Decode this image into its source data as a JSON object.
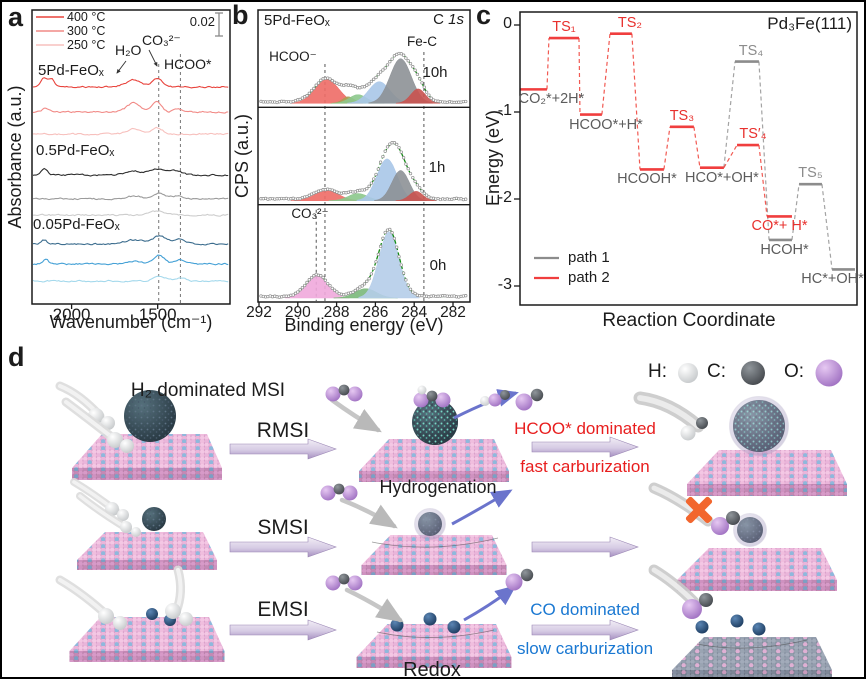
{
  "panel_a": {
    "tag": "a",
    "ylabel": "Absorbance (a.u.)",
    "xlabel": "Wavenumber (cm⁻¹)",
    "legend": [
      {
        "label": "400 °C",
        "color": "#e8433c"
      },
      {
        "label": "300 °C",
        "color": "#f18a86"
      },
      {
        "label": "250 °C",
        "color": "#f7c0bd"
      }
    ],
    "scalebar_label": "0.02",
    "annotations": {
      "h2o": "H₂O",
      "co3": "CO₃²⁻",
      "hcoo": "HCOO*"
    },
    "group_labels": [
      "5Pd-FeOₓ",
      "0.5Pd-FeOₓ",
      "0.05Pd-FeOₓ"
    ]
  },
  "panel_b": {
    "tag": "b",
    "sample": "5Pd-FeOₓ",
    "corner_element": "C ",
    "corner_orbital": "1s",
    "label_hcoo": "HCOO⁻",
    "label_fec": "Fe-C",
    "label_co3": "CO₃²⁻",
    "times": [
      "10h",
      "1h",
      "0h"
    ],
    "ylabel": "CPS (a.u.)",
    "xlabel": "Binding energy (eV)"
  },
  "panel_c": {
    "tag": "c",
    "title": "Pd₃Fe(111)",
    "ylabel": "Energy (eV)",
    "xlabel": "Reaction Coordinate",
    "legend": [
      {
        "label": "path 1",
        "color": "#8c8c8c"
      },
      {
        "label": "path 2",
        "color": "#f03e3e"
      }
    ]
  },
  "panel_d": {
    "tag": "d",
    "title": "H₂ dominated MSI",
    "atom_legend": [
      {
        "symbol": "H:",
        "color": "#d0d3d5"
      },
      {
        "symbol": "C:",
        "color": "#55595d"
      },
      {
        "symbol": "O:",
        "color": "#bd93d4"
      }
    ],
    "row_labels": [
      "RMSI",
      "SMSI",
      "EMSI"
    ],
    "hydrogenation_label": "Hydrogenation",
    "redox_label": "Redox",
    "notes": {
      "hcoo_dominated": "HCOO* dominated",
      "fast_carburization": "fast carburization",
      "co_dominated": "CO dominated",
      "slow_carburization": "slow carburization"
    },
    "note_colors": {
      "red": "#e81e1e",
      "blue": "#1a78d2"
    }
  },
  "chart_data": [
    {
      "panel": "a",
      "type": "line",
      "xlabel": "Wavenumber (cm⁻¹)",
      "ylabel": "Absorbance (a.u.)",
      "x_range": [
        2230,
        1080
      ],
      "x_axis_reversed": true,
      "x_ticks": [
        2000,
        1500
      ],
      "scale_bar": 0.02,
      "dashed_lines_x": [
        1494,
        1368
      ],
      "annotations": [
        {
          "text": "H₂O",
          "x": 1640
        },
        {
          "text": "CO₃²⁻",
          "x": 1510
        },
        {
          "text": "HCOO*",
          "x": 1390
        }
      ],
      "groups": [
        {
          "label": "5Pd-FeOₓ",
          "series": [
            {
              "name": "400 °C",
              "color": "#e8433c",
              "offset": 85,
              "features": [
                [
                  2160,
                  9,
                  20
                ],
                [
                  2115,
                  8,
                  16
                ],
                [
                  1640,
                  7,
                  45
                ],
                [
                  1500,
                  9,
                  28
                ]
              ]
            },
            {
              "name": "300 °C",
              "color": "#f18a86",
              "offset": 110,
              "features": [
                [
                  2150,
                  4,
                  18
                ],
                [
                  1640,
                  9,
                  38
                ],
                [
                  1505,
                  11,
                  26
                ],
                [
                  1380,
                  3,
                  25
                ]
              ]
            },
            {
              "name": "250 °C",
              "color": "#f7c0bd",
              "offset": 132,
              "features": [
                [
                  1640,
                  5,
                  40
                ],
                [
                  1500,
                  6,
                  30
                ]
              ]
            }
          ]
        },
        {
          "label": "0.5Pd-FeOₓ",
          "series": [
            {
              "name": "400 °C",
              "color": "#2f2f2f",
              "offset": 173,
              "features": [
                [
                  2160,
                  6,
                  18
                ],
                [
                  1640,
                  4,
                  50
                ],
                [
                  1500,
                  6,
                  45
                ],
                [
                  1400,
                  4,
                  40
                ]
              ]
            },
            {
              "name": "300 °C",
              "color": "#9b9b9b",
              "offset": 197,
              "features": [
                [
                  1640,
                  3,
                  45
                ],
                [
                  1495,
                  6,
                  35
                ],
                [
                  1390,
                  3,
                  30
                ]
              ]
            },
            {
              "name": "250 °C",
              "color": "#cdcdcd",
              "offset": 213,
              "features": [
                [
                  1500,
                  4,
                  45
                ]
              ]
            }
          ]
        },
        {
          "label": "0.05Pd-FeOₓ",
          "series": [
            {
              "name": "400 °C",
              "color": "#3c6d8e",
              "offset": 242,
              "features": [
                [
                  2160,
                  4,
                  16
                ],
                [
                  1640,
                  4,
                  55
                ],
                [
                  1490,
                  8,
                  40
                ],
                [
                  1370,
                  5,
                  35
                ]
              ]
            },
            {
              "name": "300 °C",
              "color": "#45a1d6",
              "offset": 262,
              "features": [
                [
                  2150,
                  5,
                  14
                ],
                [
                  1640,
                  3,
                  45
                ],
                [
                  1490,
                  9,
                  30
                ],
                [
                  1370,
                  4,
                  30
                ]
              ]
            },
            {
              "name": "250 °C",
              "color": "#a5d9ec",
              "offset": 279,
              "features": [
                [
                  1490,
                  5,
                  35
                ],
                [
                  1370,
                  3,
                  30
                ]
              ]
            }
          ]
        }
      ]
    },
    {
      "panel": "b",
      "type": "area",
      "sample": "5Pd-FeOₓ",
      "region": "C 1s",
      "xlabel": "Binding energy (eV)",
      "ylabel": "CPS (a.u.)",
      "x_range": [
        292,
        281.1
      ],
      "x_axis_reversed": true,
      "x_ticks": [
        292,
        290,
        288,
        286,
        284,
        282
      ],
      "dashed_lines_ev": [
        288.6,
        283.5
      ],
      "extra_dashed_0h": 289.05,
      "envelope_color": "#128a12",
      "marker_color": "#8f8f8f",
      "subpanels": [
        {
          "time": "10h",
          "peaks": [
            [
              288.5,
              0.62,
              0.33,
              "#ee6c66"
            ],
            [
              287.4,
              0.3,
              0.09,
              "#ac9e52"
            ],
            [
              286.9,
              0.45,
              0.12,
              "#8cc88c"
            ],
            [
              285.8,
              0.55,
              0.3,
              "#a9c6e8"
            ],
            [
              284.7,
              0.55,
              0.62,
              "#8d9196"
            ],
            [
              283.8,
              0.38,
              0.2,
              "#c9534f"
            ]
          ]
        },
        {
          "time": "1h",
          "peaks": [
            [
              288.5,
              0.62,
              0.14,
              "#ee6c66"
            ],
            [
              286.9,
              0.5,
              0.1,
              "#8cc88c"
            ],
            [
              285.4,
              0.52,
              0.58,
              "#a9c6e8"
            ],
            [
              284.7,
              0.45,
              0.42,
              "#8d9196"
            ],
            [
              283.9,
              0.35,
              0.13,
              "#c9534f"
            ]
          ]
        },
        {
          "time": "0h",
          "peaks": [
            [
              289.0,
              0.55,
              0.3,
              "#f0a8dc"
            ],
            [
              286.5,
              0.55,
              0.13,
              "#7ab87a"
            ],
            [
              285.3,
              0.52,
              0.92,
              "#b5cde9"
            ]
          ]
        }
      ]
    },
    {
      "panel": "c",
      "type": "line",
      "subtype": "energy-diagram",
      "title": "Pd₃Fe(111)",
      "xlabel": "Reaction Coordinate",
      "ylabel": "Energy (eV)",
      "ylim": [
        -3.2,
        0.25
      ],
      "y_ticks": [
        0,
        -1,
        -2,
        -3
      ],
      "legend": [
        {
          "label": "path 1",
          "color": "#8c8c8c"
        },
        {
          "label": "path 2",
          "color": "#f03e3e"
        }
      ],
      "levels": [
        {
          "id": "CO2",
          "label": "CO₂*+2H*",
          "e": -0.74,
          "x0": 0.0,
          "x1": 0.08,
          "color": "#f03e3e",
          "label_color": "#5c5c5c",
          "label_pos": "below",
          "label_dx": 18
        },
        {
          "id": "TS1",
          "label": "TS₁",
          "e": -0.15,
          "x0": 0.086,
          "x1": 0.175,
          "color": "#f03e3e",
          "label_color": "#e8312e",
          "label_pos": "above",
          "label_dx": 0
        },
        {
          "id": "HCOO",
          "label": "HCOO*+H*",
          "e": -1.03,
          "x0": 0.178,
          "x1": 0.243,
          "color": "#f03e3e",
          "label_color": "#5c5c5c",
          "label_pos": "below",
          "label_dx": 15
        },
        {
          "id": "TS2",
          "label": "TS₂",
          "e": -0.1,
          "x0": 0.267,
          "x1": 0.332,
          "color": "#f03e3e",
          "label_color": "#e8312e",
          "label_pos": "above",
          "label_dx": 9
        },
        {
          "id": "HCOOH",
          "label": "HCOOH*",
          "e": -1.66,
          "x0": 0.356,
          "x1": 0.427,
          "color": "#f03e3e",
          "label_color": "#5c5c5c",
          "label_pos": "below",
          "label_dx": -5
        },
        {
          "id": "TS3",
          "label": "TS₃",
          "e": -1.17,
          "x0": 0.445,
          "x1": 0.516,
          "color": "#f03e3e",
          "label_color": "#e8312e",
          "label_pos": "above",
          "label_dx": 0
        },
        {
          "id": "HCO",
          "label": "HCO*+OH*",
          "e": -1.64,
          "x0": 0.534,
          "x1": 0.605,
          "color": "#f03e3e",
          "label_color": "#5c5c5c",
          "label_pos": "below",
          "label_dx": 10
        },
        {
          "id": "TS4",
          "label": "TS₄",
          "e": -0.42,
          "x0": 0.638,
          "x1": 0.709,
          "color": "#8c8c8c",
          "label_color": "#8c8c8c",
          "label_pos": "above",
          "label_dx": 4
        },
        {
          "id": "TS4p",
          "label": "TS′₄",
          "e": -1.38,
          "x0": 0.644,
          "x1": 0.709,
          "color": "#f03e3e",
          "label_color": "#e8312e",
          "label_pos": "above",
          "label_dx": 5
        },
        {
          "id": "COH",
          "label": "CO*+ H*",
          "e": -2.2,
          "x0": 0.733,
          "x1": 0.807,
          "color": "#f03e3e",
          "label_color": "#e8312e",
          "label_pos": "below",
          "label_dx": 0
        },
        {
          "id": "HCOH",
          "label": "HCOH*",
          "e": -2.47,
          "x0": 0.739,
          "x1": 0.807,
          "color": "#8c8c8c",
          "label_color": "#5c5c5c",
          "label_pos": "below",
          "label_dx": 4
        },
        {
          "id": "TS5",
          "label": "TS₅",
          "e": -1.83,
          "x0": 0.828,
          "x1": 0.896,
          "color": "#8c8c8c",
          "label_color": "#8c8c8c",
          "label_pos": "above",
          "label_dx": 0
        },
        {
          "id": "HC",
          "label": "HC*+OH*",
          "e": -2.81,
          "x0": 0.926,
          "x1": 0.994,
          "color": "#8c8c8c",
          "label_color": "#5c5c5c",
          "label_pos": "below",
          "label_dx": -11
        }
      ],
      "paths": {
        "path1": [
          "HCO",
          "TS4",
          "HCOH",
          "TS5",
          "HC"
        ],
        "path2": [
          "CO2",
          "TS1",
          "HCOO",
          "TS2",
          "HCOOH",
          "TS3",
          "HCO",
          "TS4p",
          "COH"
        ]
      }
    }
  ]
}
